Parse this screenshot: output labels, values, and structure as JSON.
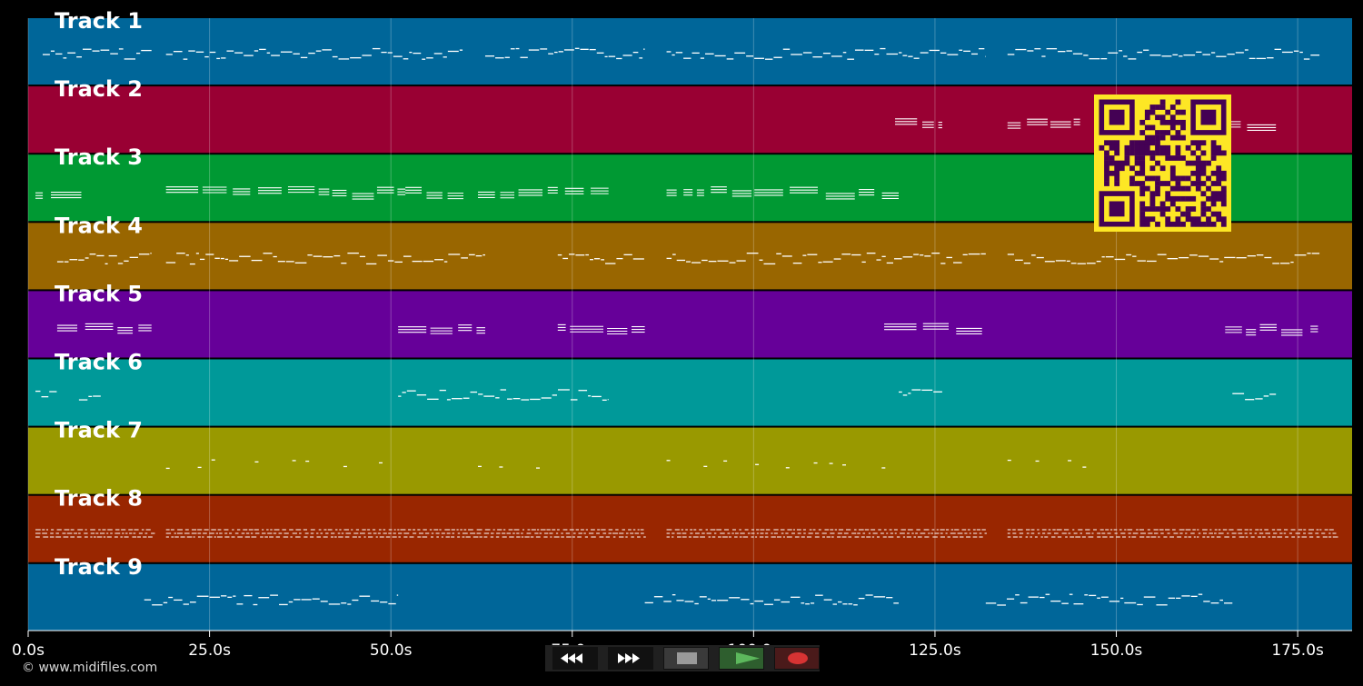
{
  "app": {
    "credit": "© www.midifiles.com"
  },
  "timeline": {
    "tick_labels": [
      "0.0s",
      "25.0s",
      "50.0s",
      "75.0s",
      "100.0s",
      "125.0s",
      "150.0s",
      "175.0s"
    ],
    "tick_values": [
      0,
      25,
      50,
      75,
      100,
      125,
      150,
      175
    ],
    "max_seconds": 182.5
  },
  "tracks": [
    {
      "label": "Track 1",
      "color": "#006699",
      "pattern": "melody",
      "segments": [
        [
          2,
          17
        ],
        [
          19,
          60
        ],
        [
          63,
          85
        ],
        [
          88,
          132
        ],
        [
          135,
          178
        ]
      ]
    },
    {
      "label": "Track 2",
      "color": "#990033",
      "pattern": "chord",
      "segments": [
        [
          119.5,
          126
        ],
        [
          135,
          145
        ],
        [
          165,
          172
        ]
      ]
    },
    {
      "label": "Track 3",
      "color": "#009933",
      "pattern": "chord",
      "segments": [
        [
          1,
          8
        ],
        [
          19,
          52
        ],
        [
          52,
          60
        ],
        [
          62,
          73
        ],
        [
          74,
          80
        ],
        [
          88,
          120
        ]
      ]
    },
    {
      "label": "Track 4",
      "color": "#996600",
      "pattern": "melody",
      "segments": [
        [
          4,
          17
        ],
        [
          19,
          63
        ],
        [
          73,
          85
        ],
        [
          88,
          132
        ],
        [
          135,
          178
        ]
      ]
    },
    {
      "label": "Track 5",
      "color": "#660099",
      "pattern": "chord",
      "segments": [
        [
          4,
          17
        ],
        [
          51,
          63
        ],
        [
          73,
          85
        ],
        [
          118,
          132
        ],
        [
          165,
          178
        ]
      ]
    },
    {
      "label": "Track 6",
      "color": "#009999",
      "pattern": "melody",
      "segments": [
        [
          1,
          4
        ],
        [
          7,
          10
        ],
        [
          51,
          80
        ],
        [
          120,
          126
        ],
        [
          166,
          172
        ]
      ]
    },
    {
      "label": "Track 7",
      "color": "#999900",
      "pattern": "dots",
      "segments": [
        [
          19,
          52
        ],
        [
          62,
          74
        ],
        [
          88,
          120
        ],
        [
          135,
          148
        ]
      ]
    },
    {
      "label": "Track 8",
      "color": "#992600",
      "pattern": "dense",
      "segments": [
        [
          1,
          17
        ],
        [
          19,
          85
        ],
        [
          88,
          132
        ],
        [
          135,
          180
        ]
      ]
    },
    {
      "label": "Track 9",
      "color": "#006699",
      "pattern": "melody",
      "segments": [
        [
          16,
          51
        ],
        [
          85,
          120
        ],
        [
          132,
          166
        ]
      ]
    }
  ],
  "controls": {
    "rewind": "rewind-icon",
    "forward": "fast-forward-icon",
    "stop": "stop-icon",
    "play": "play-icon",
    "record": "record-icon"
  },
  "colors": {
    "background": "#000000",
    "qr_background": "#fde725",
    "qr_foreground": "#440154",
    "play": "#5cb85c",
    "record": "#d63333"
  }
}
